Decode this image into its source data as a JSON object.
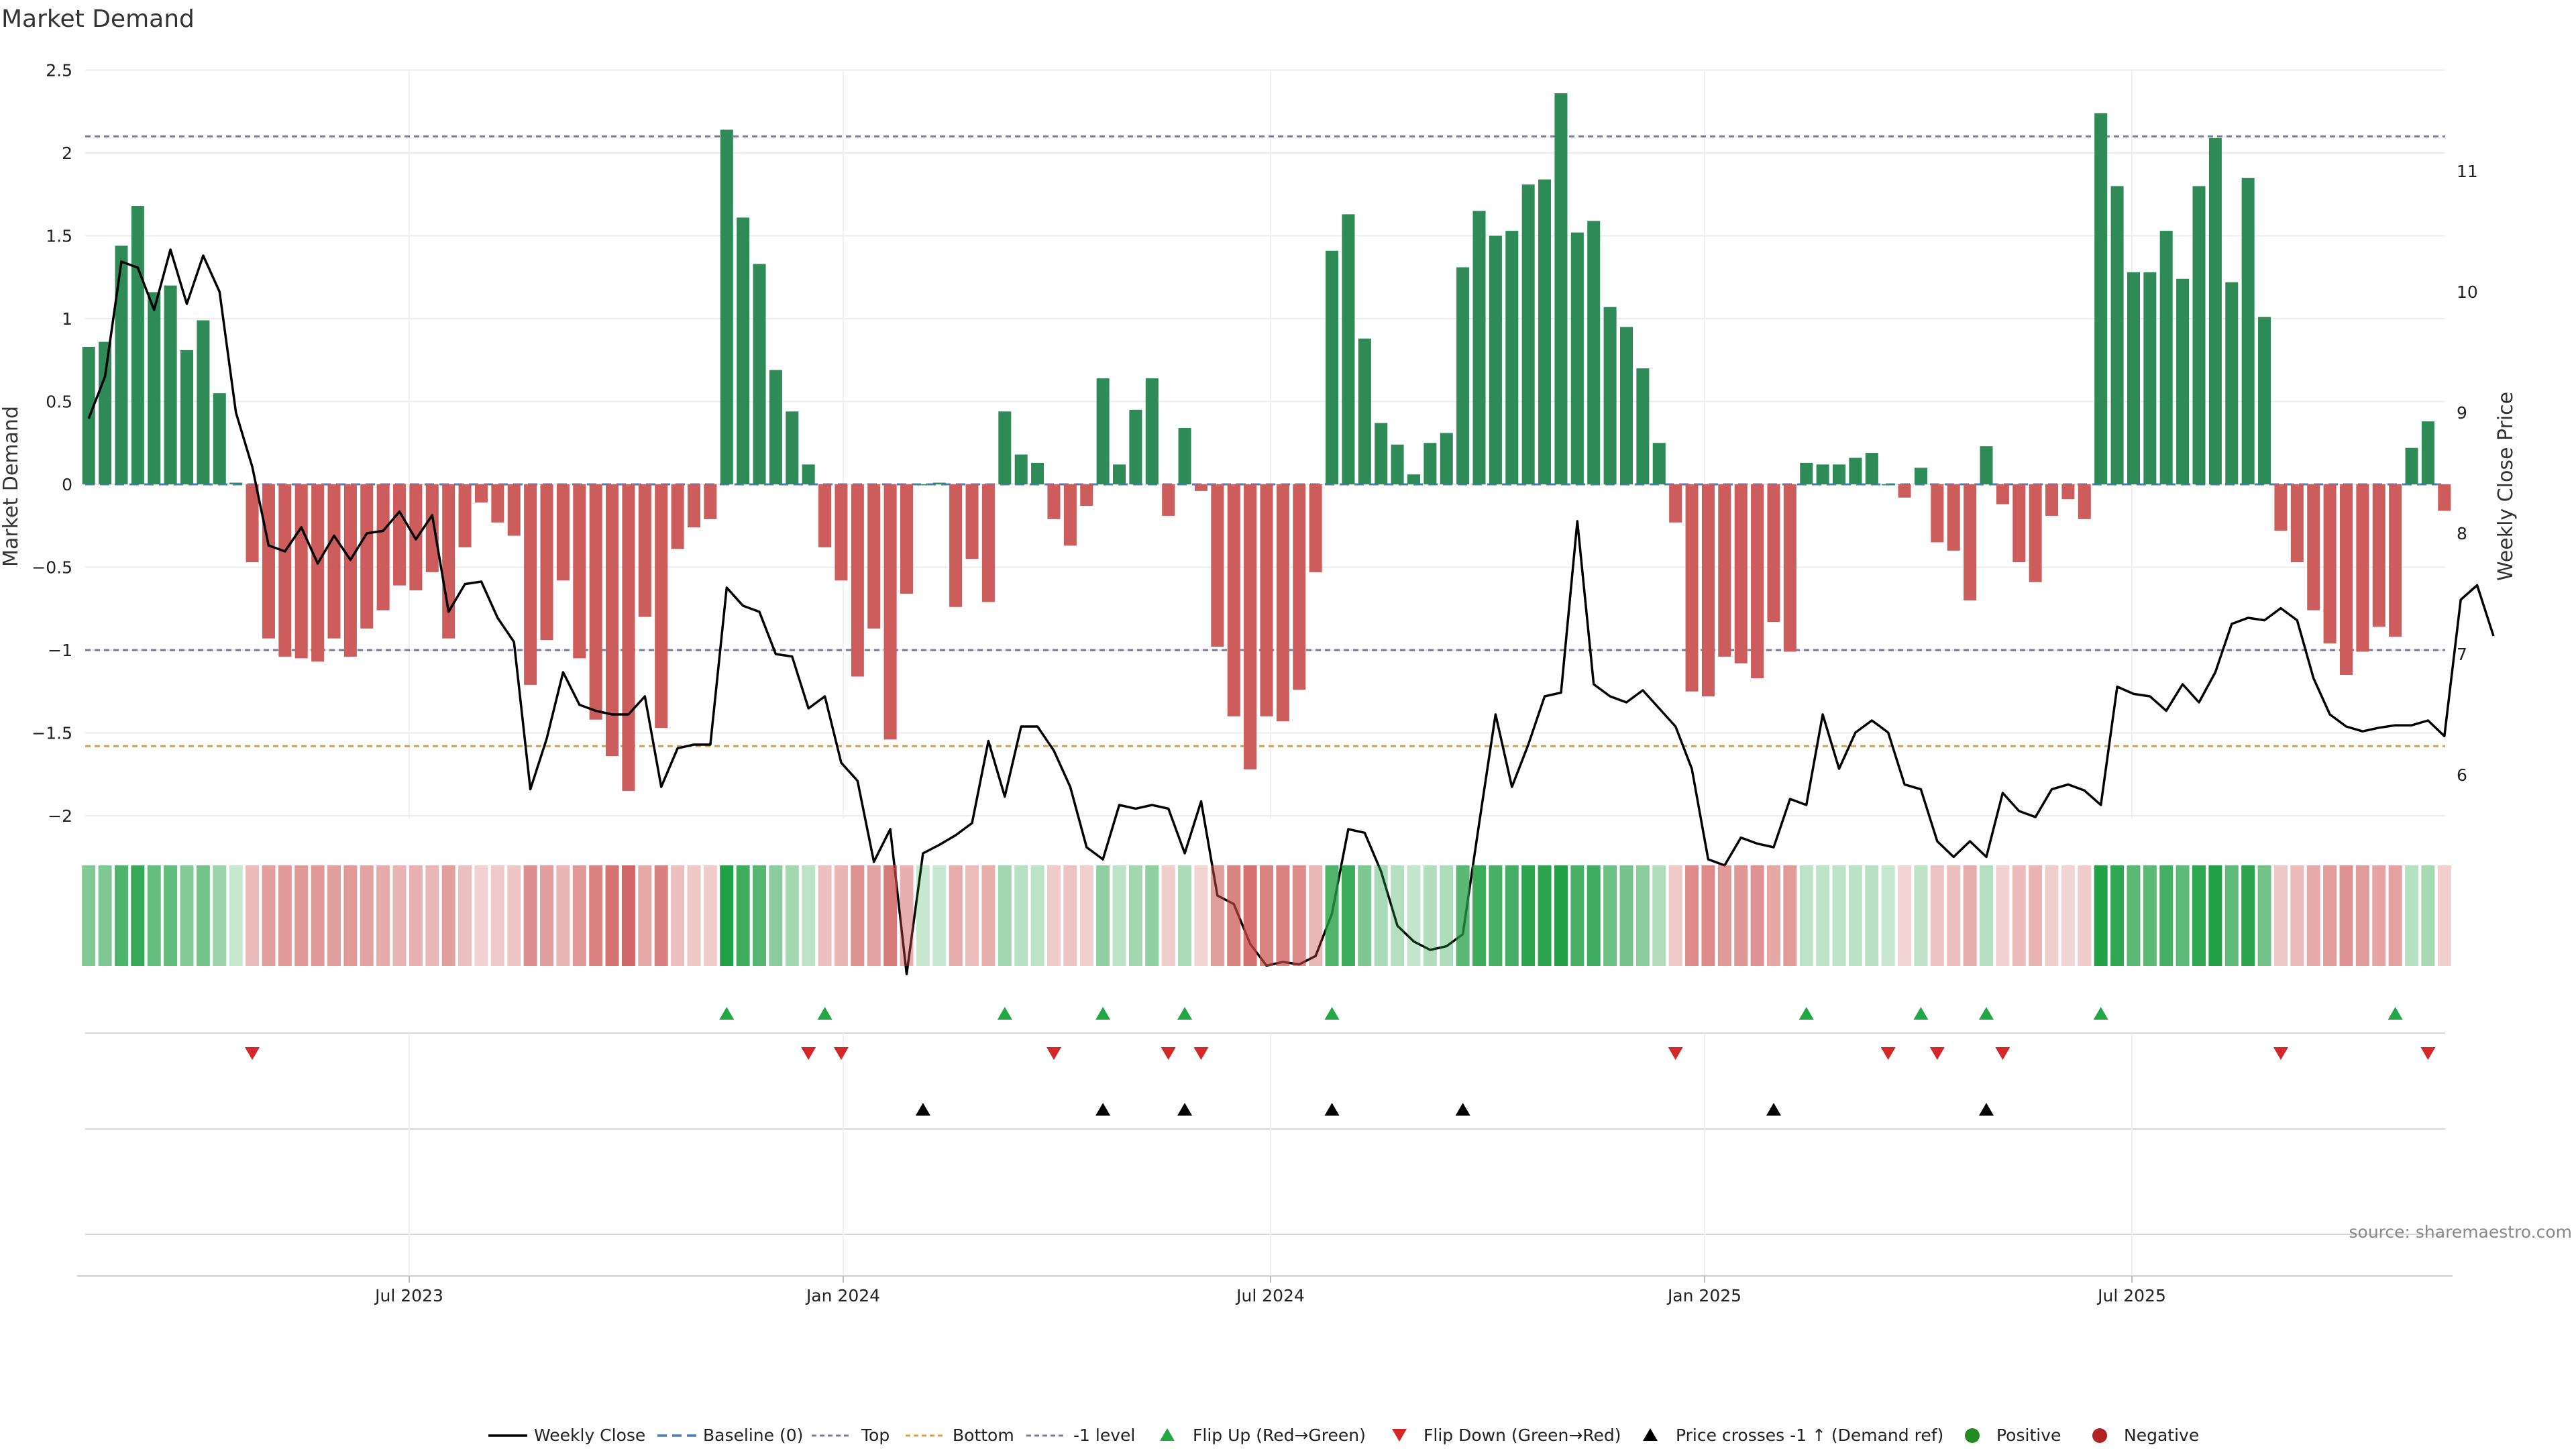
{
  "chart_data": {
    "type": "bar",
    "title": "Market Demand",
    "ylabel": "Market Demand",
    "y2label": "Weekly Close Price",
    "ylim": [
      -2.2,
      2.5
    ],
    "y2lim": [
      5.65,
      11.78
    ],
    "yticks": [
      "2.5",
      "2",
      "1.5",
      "1",
      "0.5",
      "0",
      "−0.5",
      "−1",
      "−1.5",
      "−2"
    ],
    "y2ticks": [
      "11",
      "10",
      "9",
      "8",
      "7",
      "6"
    ],
    "xticks": [
      "Jul 2023",
      "Jan 2024",
      "Jul 2024",
      "Jan 2025",
      "Jul 2025"
    ],
    "grid": true,
    "reference_lines": [
      {
        "name": "Top",
        "value": 2.1,
        "color": "#7a7a9a"
      },
      {
        "name": "Bottom",
        "value": -1.58,
        "color": "#d9a04a"
      },
      {
        "name": "-1 level",
        "value": -1.0,
        "color": "#7a7a9a"
      }
    ],
    "colors": {
      "positive": "#2e8b57",
      "negative": "#cd5c5c",
      "price": "#000000",
      "baseline": "#4a7fb5",
      "flip_up": "#22a745",
      "flip_down": "#d62728"
    },
    "demand": [
      0.83,
      0.86,
      1.44,
      1.68,
      1.16,
      1.2,
      0.81,
      0.99,
      0.55,
      0.01,
      -0.47,
      -0.93,
      -1.04,
      -1.05,
      -1.07,
      -0.93,
      -1.04,
      -0.87,
      -0.76,
      -0.61,
      -0.64,
      -0.53,
      -0.93,
      -0.38,
      -0.11,
      -0.23,
      -0.31,
      -1.21,
      -0.94,
      -0.58,
      -1.05,
      -1.42,
      -1.64,
      -1.85,
      -0.8,
      -1.47,
      -0.39,
      -0.26,
      -0.21,
      2.14,
      1.61,
      1.33,
      0.69,
      0.44,
      0.12,
      -0.38,
      -0.58,
      -1.16,
      -0.87,
      -1.54,
      -0.66,
      0.0,
      0.01,
      -0.74,
      -0.45,
      -0.71,
      0.44,
      0.18,
      0.13,
      -0.21,
      -0.37,
      -0.13,
      0.64,
      0.12,
      0.45,
      0.64,
      -0.19,
      0.34,
      -0.04,
      -0.98,
      -1.4,
      -1.72,
      -1.4,
      -1.43,
      -1.24,
      -0.53,
      1.41,
      1.63,
      0.88,
      0.37,
      0.24,
      0.06,
      0.25,
      0.31,
      1.31,
      1.65,
      1.5,
      1.53,
      1.81,
      1.84,
      2.36,
      1.52,
      1.59,
      1.07,
      0.95,
      0.7,
      0.25,
      -0.23,
      -1.25,
      -1.28,
      -1.04,
      -1.08,
      -1.17,
      -0.83,
      -1.01,
      0.13,
      0.12,
      0.12,
      0.16,
      0.19,
      0.0,
      -0.08,
      0.1,
      -0.35,
      -0.4,
      -0.7,
      0.23,
      -0.12,
      -0.47,
      -0.59,
      -0.19,
      -0.09,
      -0.21,
      2.24,
      1.8,
      1.28,
      1.28,
      1.53,
      1.24,
      1.8,
      2.09,
      1.22,
      1.85,
      1.01,
      -0.28,
      -0.47,
      -0.76,
      -0.96,
      -1.15,
      -1.01,
      -0.86,
      -0.92,
      0.22,
      0.38,
      -0.16
    ],
    "price": [
      8.95,
      9.3,
      10.25,
      10.2,
      9.85,
      10.35,
      9.9,
      10.3,
      10.0,
      9.0,
      8.55,
      7.9,
      7.85,
      8.05,
      7.75,
      7.98,
      7.78,
      8.0,
      8.02,
      8.18,
      7.95,
      8.15,
      7.35,
      7.58,
      7.6,
      7.3,
      7.1,
      5.88,
      6.3,
      6.85,
      6.58,
      6.53,
      6.5,
      6.5,
      6.65,
      5.9,
      6.22,
      6.25,
      6.25,
      7.55,
      7.4,
      7.35,
      7.0,
      6.98,
      6.55,
      6.65,
      6.1,
      5.95,
      5.28,
      5.55,
      4.35,
      5.35,
      5.42,
      5.5,
      5.6,
      6.28,
      5.82,
      6.4,
      6.4,
      6.2,
      5.9,
      5.4,
      5.3,
      5.75,
      5.72,
      5.75,
      5.72,
      5.35,
      5.78,
      5.0,
      4.93,
      4.6,
      4.42,
      4.45,
      4.43,
      4.5,
      4.85,
      5.55,
      5.52,
      5.2,
      4.75,
      4.62,
      4.55,
      4.58,
      4.68,
      5.6,
      6.5,
      5.9,
      6.25,
      6.65,
      6.68,
      8.1,
      6.75,
      6.65,
      6.6,
      6.7,
      6.55,
      6.4,
      6.05,
      5.3,
      5.25,
      5.48,
      5.43,
      5.4,
      5.8,
      5.75,
      6.5,
      6.05,
      6.35,
      6.45,
      6.35,
      5.92,
      5.88,
      5.45,
      5.32,
      5.45,
      5.32,
      5.85,
      5.7,
      5.65,
      5.88,
      5.92,
      5.87,
      5.75,
      6.73,
      6.67,
      6.65,
      6.53,
      6.75,
      6.6,
      6.85,
      7.25,
      7.3,
      7.28,
      7.38,
      7.28,
      6.8,
      6.5,
      6.4,
      6.36,
      6.39,
      6.41,
      6.41,
      6.45,
      6.32,
      7.45,
      7.57,
      7.15
    ],
    "flip_up_weeks": [
      39,
      45,
      56,
      62,
      67,
      76,
      105,
      112,
      116,
      123,
      141
    ],
    "flip_down_weeks": [
      10,
      44,
      46,
      59,
      66,
      68,
      97,
      110,
      113,
      117,
      134,
      143
    ],
    "price_cross_weeks": [
      51,
      62,
      67,
      76,
      84,
      103,
      116
    ],
    "source": "source: sharemaestro.com",
    "legend": [
      "Weekly Close",
      "Baseline (0)",
      "Top",
      "Bottom",
      "-1 level",
      "Flip Up (Red→Green)",
      "Flip Down (Green→Red)",
      "Price crosses -1 ↑ (Demand ref)",
      "Positive",
      "Negative"
    ]
  }
}
